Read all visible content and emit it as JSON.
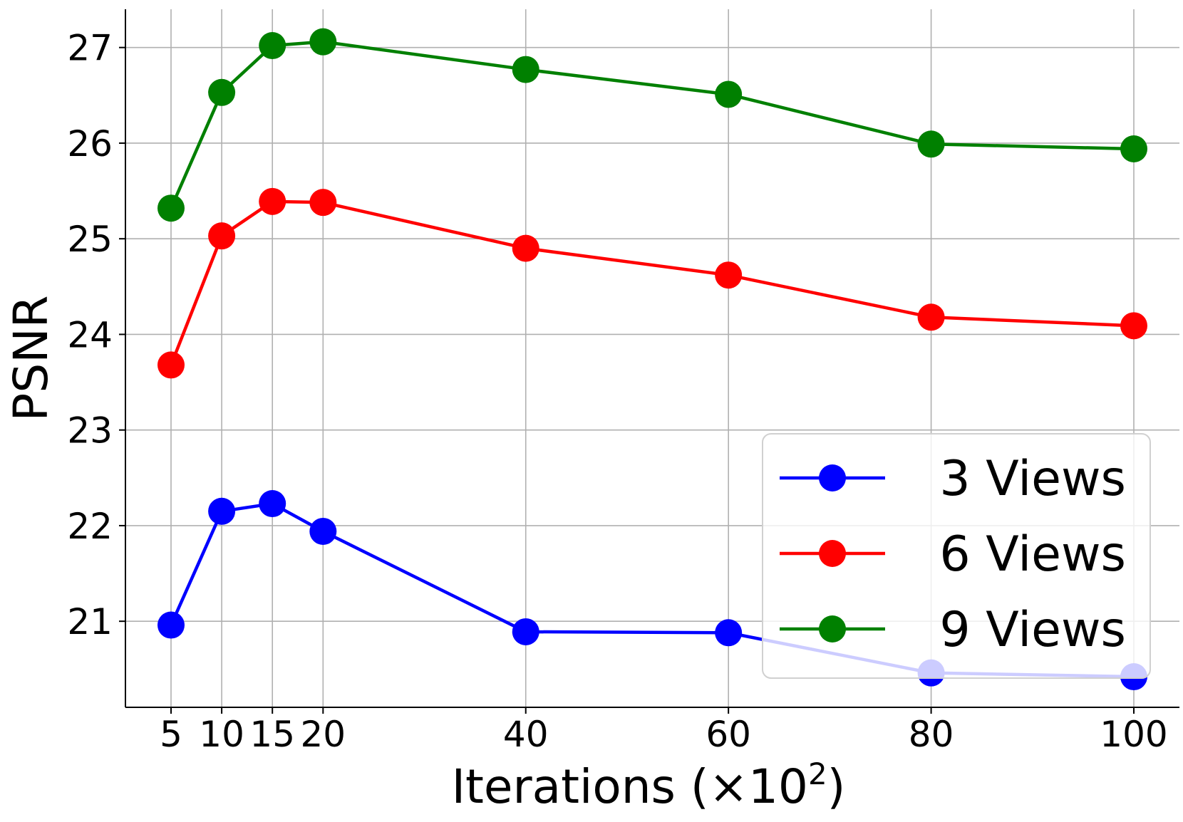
{
  "chart_data": {
    "type": "line",
    "xlabel": "Iterations (×10",
    "xlabel_superscript": "2",
    "xlabel_suffix": ")",
    "ylabel": "PSNR",
    "xlim": [
      0.5,
      104.5
    ],
    "ylim": [
      20.1,
      27.4
    ],
    "xticks": [
      5,
      10,
      15,
      20,
      40,
      60,
      80,
      100
    ],
    "xtick_labels": [
      "5",
      "10",
      "15",
      "20",
      "40",
      "60",
      "80",
      "100"
    ],
    "yticks": [
      21,
      22,
      23,
      24,
      25,
      26,
      27
    ],
    "ytick_labels": [
      "21",
      "22",
      "23",
      "24",
      "25",
      "26",
      "27"
    ],
    "grid": true,
    "legend_position": "bottom-right",
    "x": [
      5,
      10,
      15,
      20,
      40,
      60,
      80,
      100
    ],
    "series": [
      {
        "name": "3 Views",
        "color": "#0000ff",
        "values": [
          20.96,
          22.15,
          22.23,
          21.94,
          20.89,
          20.88,
          20.46,
          20.42
        ]
      },
      {
        "name": "6 Views",
        "color": "#ff0000",
        "values": [
          23.68,
          25.03,
          25.39,
          25.38,
          24.9,
          24.62,
          24.18,
          24.09
        ]
      },
      {
        "name": "9 Views",
        "color": "#008000",
        "values": [
          25.32,
          26.53,
          27.02,
          27.06,
          26.77,
          26.51,
          25.99,
          25.94
        ]
      }
    ]
  }
}
